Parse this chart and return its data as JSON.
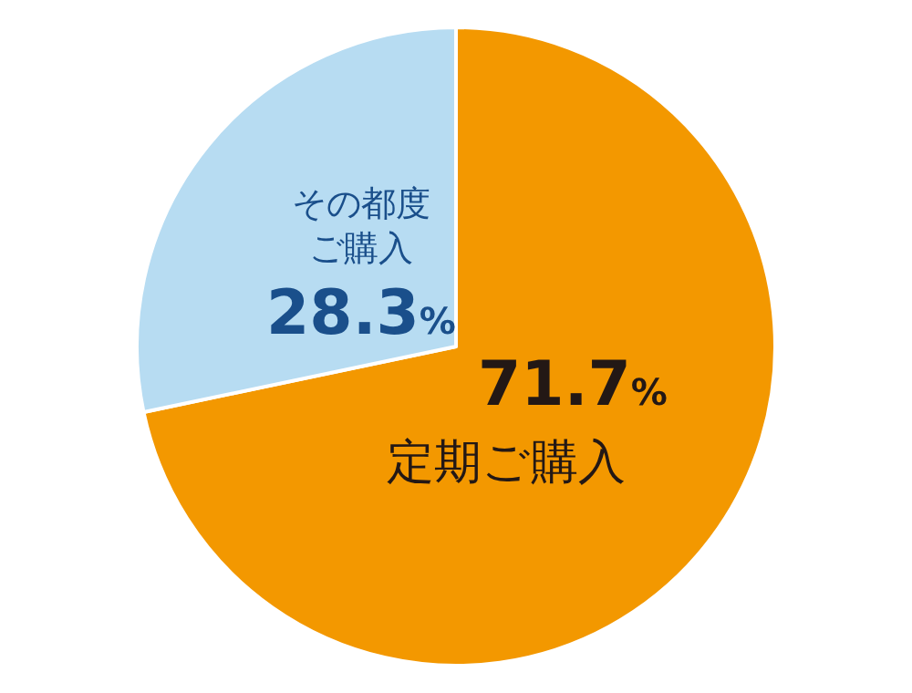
{
  "chart_data": {
    "type": "pie",
    "categories": [
      "定期ご購入",
      "その都度ご購入"
    ],
    "values": [
      71.7,
      28.3
    ],
    "value_labels": [
      "71.7%",
      "28.3%"
    ],
    "colors": [
      "#f39800",
      "#b7dcf2"
    ],
    "legend": false
  }
}
